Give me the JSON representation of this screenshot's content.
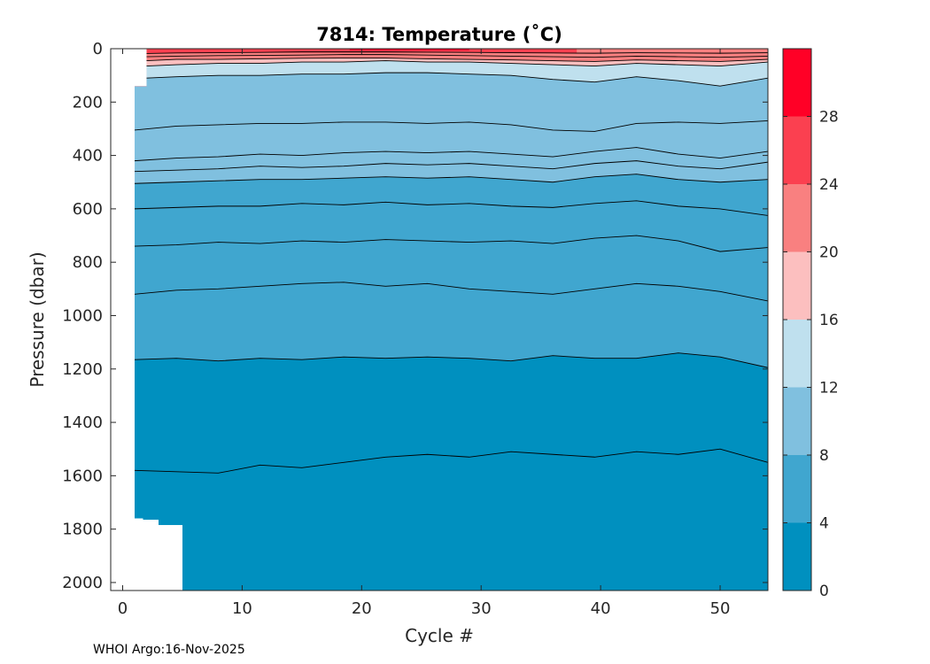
{
  "footer": {
    "source": "WHOI Argo:",
    "date": "16-Nov-2025"
  },
  "chart_data": {
    "type": "contour",
    "title": "7814:  Temperature (˚C)",
    "xlabel": "Cycle #",
    "ylabel": "Pressure (dbar)",
    "xlim": [
      -1,
      54
    ],
    "ylim": [
      0,
      2030
    ],
    "y_reversed": true,
    "xticks": [
      0,
      10,
      20,
      30,
      40,
      50
    ],
    "yticks": [
      0,
      200,
      400,
      600,
      800,
      1000,
      1200,
      1400,
      1600,
      1800,
      2000
    ],
    "colorbar": {
      "range": [
        0,
        32
      ],
      "ticks": [
        0,
        4,
        8,
        12,
        16,
        20,
        24,
        28
      ],
      "levels": [
        {
          "from": 0,
          "to": 4,
          "color": "#0090bf"
        },
        {
          "from": 4,
          "to": 8,
          "color": "#40a6cf"
        },
        {
          "from": 8,
          "to": 12,
          "color": "#80c0df"
        },
        {
          "from": 12,
          "to": 16,
          "color": "#bfe0ee"
        },
        {
          "from": 16,
          "to": 20,
          "color": "#fcbfbf"
        },
        {
          "from": 20,
          "to": 24,
          "color": "#f98080"
        },
        {
          "from": 24,
          "to": 28,
          "color": "#fb4050"
        },
        {
          "from": 28,
          "to": 32,
          "color": "#ff0026"
        }
      ]
    },
    "data_extent": {
      "first_cycle": 1,
      "last_cycle": 54,
      "surface_start_cycle": 2,
      "surface_start_pressure": 140,
      "shallow_profiles": [
        {
          "cycle_to": 1.7,
          "max_pressure": 1760
        },
        {
          "cycle_to": 3,
          "max_pressure": 1765
        },
        {
          "cycle_to": 5,
          "max_pressure": 1785
        },
        {
          "cycle_to": 54,
          "max_pressure": 2030
        }
      ]
    },
    "isotherms": [
      {
        "level": 2,
        "pressure": [
          1580,
          1585,
          1590,
          1560,
          1570,
          1550,
          1530,
          1520,
          1530,
          1510,
          1520,
          1530,
          1510,
          1520,
          1500,
          1550
        ]
      },
      {
        "level": 4,
        "pressure": [
          1165,
          1160,
          1170,
          1160,
          1165,
          1155,
          1160,
          1155,
          1160,
          1170,
          1150,
          1160,
          1160,
          1140,
          1155,
          1195
        ]
      },
      {
        "level": 5,
        "pressure": [
          920,
          905,
          900,
          890,
          880,
          875,
          890,
          880,
          900,
          910,
          920,
          900,
          880,
          890,
          910,
          945
        ]
      },
      {
        "level": 6,
        "pressure": [
          740,
          735,
          725,
          730,
          720,
          725,
          715,
          720,
          725,
          720,
          730,
          710,
          700,
          720,
          760,
          745
        ]
      },
      {
        "level": 7,
        "pressure": [
          600,
          595,
          590,
          590,
          580,
          585,
          575,
          585,
          580,
          590,
          595,
          580,
          570,
          590,
          600,
          625
        ]
      },
      {
        "level": 8,
        "pressure": [
          505,
          500,
          495,
          490,
          490,
          485,
          480,
          485,
          480,
          490,
          500,
          480,
          470,
          490,
          500,
          490
        ]
      },
      {
        "level": 9,
        "pressure": [
          460,
          455,
          450,
          440,
          445,
          440,
          430,
          435,
          430,
          440,
          450,
          430,
          420,
          440,
          450,
          425
        ]
      },
      {
        "level": 10,
        "pressure": [
          420,
          410,
          405,
          395,
          400,
          390,
          385,
          390,
          385,
          395,
          405,
          385,
          370,
          395,
          410,
          385
        ]
      },
      {
        "level": 11,
        "pressure": [
          305,
          290,
          285,
          280,
          280,
          275,
          275,
          280,
          275,
          285,
          305,
          310,
          280,
          275,
          280,
          270
        ]
      },
      {
        "level": 14,
        "pressure": [
          110,
          105,
          100,
          100,
          95,
          95,
          90,
          90,
          95,
          100,
          115,
          125,
          105,
          120,
          140,
          110
        ]
      },
      {
        "level": 17,
        "pressure": [
          65,
          60,
          55,
          55,
          50,
          50,
          45,
          50,
          50,
          55,
          60,
          65,
          55,
          60,
          65,
          50
        ]
      },
      {
        "level": 20,
        "pressure": [
          45,
          40,
          40,
          38,
          36,
          35,
          35,
          38,
          40,
          42,
          45,
          48,
          42,
          45,
          48,
          40
        ]
      },
      {
        "level": 22,
        "pressure": [
          30,
          28,
          26,
          25,
          24,
          22,
          22,
          24,
          26,
          28,
          30,
          32,
          28,
          30,
          32,
          28
        ]
      },
      {
        "level": 24,
        "pressure": [
          18,
          16,
          15,
          14,
          12,
          12,
          12,
          13,
          14,
          15,
          16,
          17,
          15,
          16,
          17,
          15
        ]
      }
    ],
    "isotherm_cycles": [
      1,
      4.5,
      8,
      11.5,
      15,
      18.5,
      22,
      25.5,
      29,
      32.5,
      36,
      39.5,
      43,
      46.5,
      50,
      54
    ],
    "warm_surface_patches": [
      {
        "from_cycle": 2,
        "to_cycle": 38,
        "color": "#fb4050",
        "depth": 15
      },
      {
        "from_cycle": 19,
        "to_cycle": 29,
        "color": "#ff0026",
        "depth": 6
      },
      {
        "from_cycle": 38,
        "to_cycle": 54,
        "color": "#f98080",
        "depth": 15
      }
    ]
  }
}
